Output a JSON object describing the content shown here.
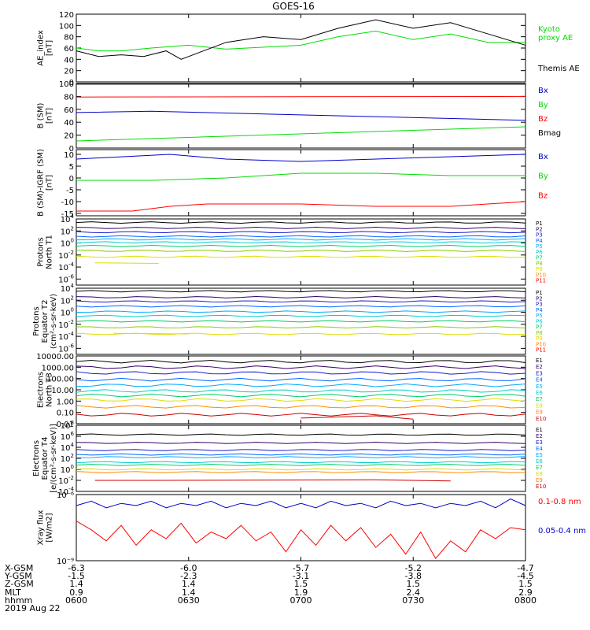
{
  "title": "GOES-16",
  "date_label": "2019 Aug 22",
  "ephem": {
    "row_labels": [
      "X-GSM",
      "Y-GSM",
      "Z-GSM",
      "MLT",
      "hhmm"
    ],
    "rows": [
      [
        "-6.3",
        "-6.0",
        "-5.7",
        "-5.2",
        "-4.7"
      ],
      [
        "-1.5",
        "-2.3",
        "-3.1",
        "-3.8",
        "-4.5"
      ],
      [
        "1.4",
        "1.4",
        "1.5",
        "1.5",
        "1.5"
      ],
      [
        "0.9",
        "1.4",
        "1.9",
        "2.4",
        "2.9"
      ],
      [
        "0600",
        "0630",
        "0700",
        "0730",
        "0800"
      ]
    ]
  },
  "colors": {
    "black": "#000000",
    "red": "#ff0000",
    "green": "#00dd00",
    "blue": "#0000cc",
    "p": [
      "#000000",
      "#330066",
      "#1a1acc",
      "#0066ff",
      "#00aaff",
      "#00cccc",
      "#00cc66",
      "#88cc00",
      "#dddd00",
      "#ff8800",
      "#ff0000",
      "#cc0000"
    ]
  },
  "chart_data": [
    {
      "type": "line",
      "ylabel": [
        "AE_index",
        "[nT]"
      ],
      "ylim": [
        0,
        120
      ],
      "yticks": [
        "0",
        "20",
        "40",
        "60",
        "80",
        "100",
        "120"
      ],
      "legend": [
        {
          "name": "Kyoto",
          "color": "#00dd00"
        },
        {
          "name": "proxy AE",
          "color": "#00dd00"
        },
        {
          "name": "Themis AE",
          "color": "#000000"
        }
      ],
      "series": [
        {
          "name": "Kyoto proxy AE",
          "color": "#00dd00",
          "x": [
            0,
            6,
            12,
            20,
            30,
            40,
            60,
            70,
            80,
            90,
            100,
            110,
            120
          ],
          "y": [
            60,
            55,
            55,
            60,
            65,
            58,
            65,
            80,
            90,
            75,
            85,
            70,
            70
          ]
        },
        {
          "name": "Themis AE",
          "color": "#000000",
          "x": [
            0,
            6,
            12,
            18,
            24,
            28,
            32,
            40,
            50,
            60,
            70,
            80,
            90,
            100,
            105,
            110,
            120
          ],
          "y": [
            55,
            45,
            48,
            45,
            55,
            40,
            50,
            70,
            80,
            75,
            95,
            110,
            95,
            105,
            95,
            85,
            65
          ]
        }
      ]
    },
    {
      "type": "line",
      "ylabel": [
        "B (SM)",
        "[nT]"
      ],
      "ylim": [
        0,
        100
      ],
      "yticks": [
        "0",
        "20",
        "40",
        "60",
        "80",
        "100"
      ],
      "legend": [
        {
          "name": "Bx",
          "color": "#0000cc"
        },
        {
          "name": "By",
          "color": "#00dd00"
        },
        {
          "name": "Bz",
          "color": "#ff0000"
        },
        {
          "name": "Bmag",
          "color": "#000000"
        }
      ],
      "series": [
        {
          "name": "Bmag",
          "color": "#000000",
          "x": [
            0,
            120
          ],
          "y": [
            99,
            99
          ]
        },
        {
          "name": "Bz",
          "color": "#ff0000",
          "x": [
            0,
            120
          ],
          "y": [
            79,
            80
          ]
        },
        {
          "name": "Bx",
          "color": "#0000cc",
          "x": [
            0,
            20,
            120
          ],
          "y": [
            55,
            57,
            43
          ]
        },
        {
          "name": "By",
          "color": "#00dd00",
          "x": [
            0,
            120
          ],
          "y": [
            11,
            33
          ]
        }
      ]
    },
    {
      "type": "line",
      "ylabel": [
        "B (SM)-IGRF (SM)",
        "[nT]"
      ],
      "ylim": [
        -16,
        12
      ],
      "yticks": [
        "-15",
        "-10",
        "-5",
        "0",
        "5",
        "10"
      ],
      "ytick_vals": [
        -15,
        -10,
        -5,
        0,
        5,
        10
      ],
      "legend": [
        {
          "name": "Bx",
          "color": "#0000cc"
        },
        {
          "name": "By",
          "color": "#00dd00"
        },
        {
          "name": "Bz",
          "color": "#ff0000"
        }
      ],
      "series": [
        {
          "name": "Bx",
          "color": "#0000cc",
          "x": [
            0,
            25,
            40,
            60,
            80,
            100,
            120
          ],
          "y": [
            8,
            10,
            8,
            7,
            8,
            9,
            10
          ]
        },
        {
          "name": "By",
          "color": "#00dd00",
          "x": [
            0,
            20,
            40,
            60,
            80,
            100,
            120
          ],
          "y": [
            -1,
            -1,
            0,
            2,
            2,
            1,
            1
          ]
        },
        {
          "name": "Bz",
          "color": "#ff0000",
          "x": [
            0,
            15,
            25,
            35,
            40,
            60,
            80,
            100,
            120
          ],
          "y": [
            -14,
            -14,
            -12,
            -11,
            -11,
            -11,
            -12,
            -12,
            -10
          ]
        }
      ]
    },
    {
      "type": "line",
      "ylabel": [
        "Protons",
        "North T1"
      ],
      "ylog": [
        -7,
        4
      ],
      "ydecades": [
        4,
        2,
        0,
        -2,
        -4,
        -6
      ],
      "legend": [
        "P1",
        "P2",
        "P3",
        "P4",
        "P5",
        "P6",
        "P7",
        "P8",
        "P9",
        "P10",
        "P11"
      ],
      "levels": [
        3.4,
        2.5,
        1.8,
        1.1,
        0.6,
        0.1,
        -0.5,
        -1.3,
        -2.3,
        null,
        null
      ],
      "gaps": [
        [],
        [],
        [],
        [],
        [],
        [],
        [],
        [],
        [
          [
            0,
            12
          ],
          [
            40,
            115
          ]
        ],
        [],
        []
      ],
      "extra": {
        "name": "P9",
        "color": "#dddd00",
        "x": [
          5,
          22
        ],
        "y": [
          -3.3,
          -3.4
        ]
      }
    },
    {
      "type": "line",
      "ylabel": [
        "Protons",
        "Equator T2",
        "(cm²-s-sr-keV)"
      ],
      "ylog": [
        -7,
        4
      ],
      "ydecades": [
        4,
        2,
        0,
        -2,
        -4,
        -6
      ],
      "legend": [
        "P1",
        "P2",
        "P3",
        "P4",
        "P5",
        "P6",
        "P7",
        "P8",
        "P9",
        "P10",
        "P11"
      ],
      "levels": [
        3.5,
        2.5,
        1.8,
        1.0,
        0.1,
        -0.6,
        -1.5,
        -2.5,
        -3.6,
        null,
        null
      ],
      "extra": {
        "name": "P9",
        "color": "#dddd00",
        "x": [
          10,
          30
        ],
        "y": [
          -3.5,
          -3.6
        ]
      }
    },
    {
      "type": "line",
      "ylabel": [
        "Electrons",
        "North T3"
      ],
      "ylog": [
        -2,
        4
      ],
      "yticks": [
        "10000.00",
        "1000.00",
        "100.00",
        "10.00",
        "1.00",
        "0.10",
        "0.01"
      ],
      "ytick_vals": [
        4,
        3,
        2,
        1,
        0,
        -1,
        -2
      ],
      "legend": [
        "E1",
        "E2",
        "E3",
        "E4",
        "E5",
        "E6",
        "E7",
        "E8",
        "E9",
        "E10"
      ],
      "levels": [
        3.5,
        3.0,
        2.5,
        1.9,
        1.4,
        0.9,
        0.5,
        0.1,
        -0.5,
        -1.2
      ],
      "extra": {
        "name": "E9",
        "color": "#cc0000",
        "x": [
          60,
          80,
          90
        ],
        "y": [
          -1.5,
          -1.3,
          -1.6
        ]
      }
    },
    {
      "type": "line",
      "ylabel": [
        "Electrons",
        "Equator T4",
        "[e/(cm²-s-sr-keV)]"
      ],
      "ylog": [
        -4,
        8
      ],
      "ydecades": [
        8,
        6,
        4,
        2,
        0,
        -2,
        -4
      ],
      "legend": [
        "E1",
        "E2",
        "E3",
        "E4",
        "E5",
        "E6",
        "E7",
        "E8",
        "E9",
        "E10"
      ],
      "levels": [
        6.3,
        4.8,
        3.5,
        2.7,
        2.2,
        1.3,
        0.8,
        0.0,
        -0.5,
        null
      ],
      "extra": {
        "name": "E9",
        "color": "#cc0000",
        "x": [
          5,
          20,
          80,
          100
        ],
        "y": [
          -2.0,
          -2.0,
          -1.9,
          -2.1
        ]
      }
    },
    {
      "type": "line",
      "ylabel": [
        "Xray flux",
        "[W/m2]"
      ],
      "ylog": [
        -9,
        -6
      ],
      "ytick_labels": [
        "10⁻⁶",
        "10⁻⁹"
      ],
      "ytick_vals": [
        -6,
        -9
      ],
      "legend": [
        {
          "name": "0.1-0.8 nm",
          "color": "#ff0000"
        },
        {
          "name": "0.05-0.4 nm",
          "color": "#0000cc"
        }
      ],
      "series": [
        {
          "name": "0.1-0.8 nm",
          "color": "#ff0000",
          "x": [
            0,
            4,
            8,
            12,
            16,
            20,
            24,
            28,
            32,
            36,
            40,
            44,
            48,
            52,
            56,
            60,
            64,
            68,
            72,
            76,
            80,
            84,
            88,
            92,
            96,
            100,
            104,
            108,
            112,
            116,
            120
          ],
          "y": [
            -7.2,
            -7.6,
            -8.1,
            -7.4,
            -8.3,
            -7.6,
            -8.0,
            -7.3,
            -8.2,
            -7.7,
            -8.0,
            -7.4,
            -8.1,
            -7.7,
            -8.6,
            -7.6,
            -8.3,
            -7.4,
            -8.1,
            -7.5,
            -8.4,
            -7.8,
            -8.7,
            -7.7,
            -8.9,
            -8.1,
            -8.6,
            -7.6,
            -8.0,
            -7.5,
            -7.6
          ]
        },
        {
          "name": "0.05-0.4 nm",
          "color": "#0000cc",
          "x": [
            0,
            4,
            8,
            12,
            16,
            20,
            24,
            28,
            32,
            36,
            40,
            44,
            48,
            52,
            56,
            60,
            64,
            68,
            72,
            76,
            80,
            84,
            88,
            92,
            96,
            100,
            104,
            108,
            112,
            116,
            120
          ],
          "y": [
            -6.5,
            -6.3,
            -6.6,
            -6.4,
            -6.5,
            -6.3,
            -6.6,
            -6.4,
            -6.5,
            -6.3,
            -6.6,
            -6.4,
            -6.5,
            -6.3,
            -6.6,
            -6.4,
            -6.6,
            -6.3,
            -6.5,
            -6.4,
            -6.6,
            -6.3,
            -6.5,
            -6.4,
            -6.6,
            -6.4,
            -6.5,
            -6.3,
            -6.6,
            -6.2,
            -6.5
          ]
        }
      ]
    }
  ]
}
